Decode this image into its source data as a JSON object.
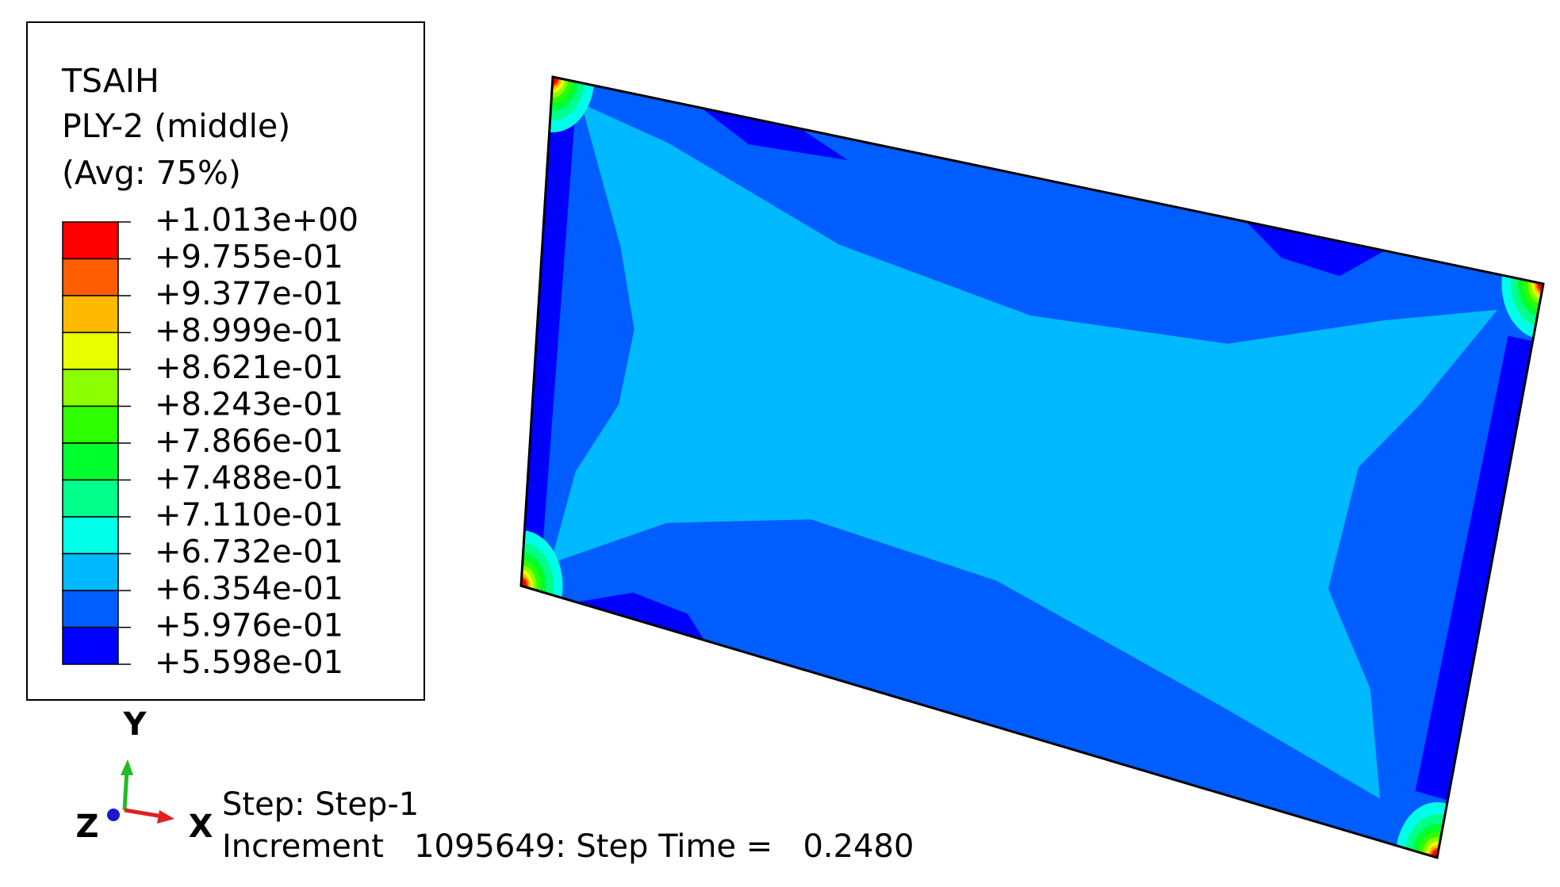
{
  "legend": {
    "title": [
      "TSAIH",
      "PLY-2 (middle)",
      "(Avg: 75%)"
    ],
    "levels": [
      "+1.013e+00",
      "+9.755e-01",
      "+9.377e-01",
      "+8.999e-01",
      "+8.621e-01",
      "+8.243e-01",
      "+7.866e-01",
      "+7.488e-01",
      "+7.110e-01",
      "+6.732e-01",
      "+6.354e-01",
      "+5.976e-01",
      "+5.598e-01"
    ],
    "colors": [
      "#ff0000",
      "#ff5d00",
      "#ffb900",
      "#e8ff00",
      "#8bff00",
      "#2eff00",
      "#00ff2e",
      "#00ff8b",
      "#00ffe8",
      "#00b9ff",
      "#005dff",
      "#0000ff"
    ]
  },
  "triad": {
    "y": "Y",
    "z": "Z",
    "x": "X"
  },
  "status": {
    "step": "Step: Step-1",
    "increment": "Increment   1095649: Step Time =   0.2480"
  }
}
